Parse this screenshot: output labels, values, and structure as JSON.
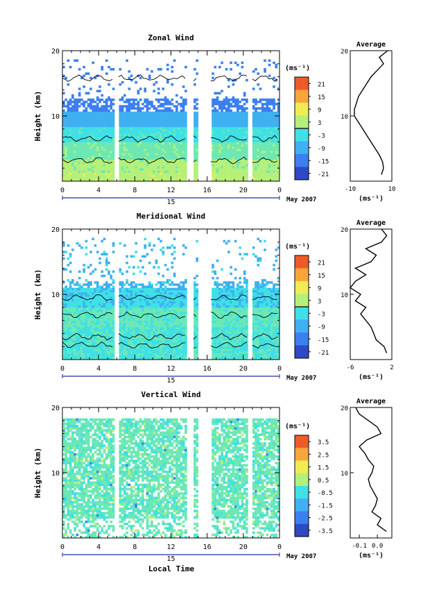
{
  "figure": {
    "xlabel_bottom": "Local Time",
    "month_label": "May 2007",
    "day_label": "15"
  },
  "chart_data": [
    {
      "type": "heatmap",
      "title": "Zonal Wind",
      "ylabel": "Height (km)",
      "xlim": [
        0,
        24
      ],
      "xticks": [
        "0",
        "4",
        "8",
        "12",
        "16",
        "20",
        "0"
      ],
      "ylim": [
        0,
        20
      ],
      "yticks": [
        "",
        "10",
        "20"
      ],
      "colorbar": {
        "unit": "(ms⁻¹)",
        "min": -24,
        "max": 24,
        "ticks": [
          "21",
          "15",
          "9",
          "3",
          "-3",
          "-9",
          "-15",
          "-21"
        ],
        "contour_level": 0
      },
      "data_gaps_hours": [
        [
          5.8,
          6.2
        ],
        [
          13.8,
          14.5
        ],
        [
          15.0,
          16.4
        ],
        [
          20.5,
          21.0
        ]
      ],
      "average": {
        "title": "Average",
        "xlabel": "(ms⁻¹)",
        "xlim": [
          -10,
          10
        ],
        "xticks": [
          "-10",
          "10"
        ],
        "yticks": [
          "20",
          "10"
        ],
        "height_km": [
          1,
          2,
          3,
          4,
          5,
          6,
          7,
          8,
          9,
          10,
          11,
          12,
          13,
          14,
          15,
          16,
          17,
          18,
          19,
          20
        ],
        "values": [
          5,
          6,
          5.5,
          4,
          2,
          0,
          -2,
          -4,
          -6,
          -8,
          -8,
          -7,
          -6,
          -4,
          -2,
          0,
          3,
          6,
          4,
          8
        ]
      }
    },
    {
      "type": "heatmap",
      "title": "Meridional Wind",
      "ylabel": "Height (km)",
      "xlim": [
        0,
        24
      ],
      "xticks": [
        "0",
        "4",
        "8",
        "12",
        "16",
        "20",
        "0"
      ],
      "ylim": [
        0,
        20
      ],
      "yticks": [
        "",
        "10",
        "20"
      ],
      "colorbar": {
        "unit": "(ms⁻¹)",
        "min": -24,
        "max": 24,
        "ticks": [
          "21",
          "15",
          "9",
          "3",
          "-3",
          "-9",
          "-15",
          "-21"
        ],
        "contour_level": 0
      },
      "data_gaps_hours": [
        [
          5.8,
          6.2
        ],
        [
          13.8,
          14.5
        ],
        [
          15.0,
          16.4
        ],
        [
          20.5,
          21.0
        ]
      ],
      "average": {
        "title": "Average",
        "xlabel": "(ms⁻¹)",
        "xlim": [
          -6,
          2
        ],
        "xticks": [
          "-6",
          "2"
        ],
        "yticks": [
          "20",
          "10"
        ],
        "height_km": [
          1,
          2,
          3,
          4,
          5,
          6,
          7,
          8,
          9,
          10,
          11,
          12,
          13,
          14,
          15,
          16,
          17,
          18,
          19,
          20
        ],
        "values": [
          1,
          0.5,
          -1,
          -1.5,
          -2,
          -3,
          -4,
          -3,
          -5,
          -4,
          -6,
          -5,
          -3,
          -5,
          -2,
          -1,
          -3,
          0,
          1,
          0
        ]
      }
    },
    {
      "type": "heatmap",
      "title": "Vertical Wind",
      "ylabel": "Height (km)",
      "xlim": [
        0,
        24
      ],
      "xticks": [
        "0",
        "4",
        "8",
        "12",
        "16",
        "20",
        "0"
      ],
      "ylim": [
        0,
        20
      ],
      "yticks": [
        "",
        "10",
        "20"
      ],
      "colorbar": {
        "unit": "(ms⁻¹)",
        "min": -4,
        "max": 4,
        "ticks": [
          "3.5",
          "2.5",
          "1.5",
          "0.5",
          "-0.5",
          "-1.5",
          "-2.5",
          "-3.5"
        ]
      },
      "data_gaps_hours": [
        [
          5.8,
          6.2
        ],
        [
          13.8,
          14.5
        ],
        [
          15.0,
          16.4
        ],
        [
          20.5,
          21.0
        ]
      ],
      "average": {
        "title": "Average",
        "xlabel": "(ms⁻¹)",
        "xlim": [
          -0.15,
          0.08
        ],
        "xticks": [
          "-0.1",
          "0.0"
        ],
        "yticks": [
          "20",
          "10"
        ],
        "height_km": [
          1,
          2,
          3,
          4,
          5,
          6,
          7,
          8,
          9,
          10,
          11,
          12,
          13,
          14,
          15,
          16,
          17,
          18,
          19,
          20
        ],
        "values": [
          0.05,
          0.0,
          0.02,
          -0.03,
          -0.01,
          0.0,
          -0.02,
          -0.04,
          -0.05,
          -0.03,
          -0.02,
          -0.05,
          -0.07,
          -0.1,
          -0.06,
          0.02,
          0.0,
          -0.05,
          -0.1,
          -0.12
        ]
      }
    }
  ]
}
